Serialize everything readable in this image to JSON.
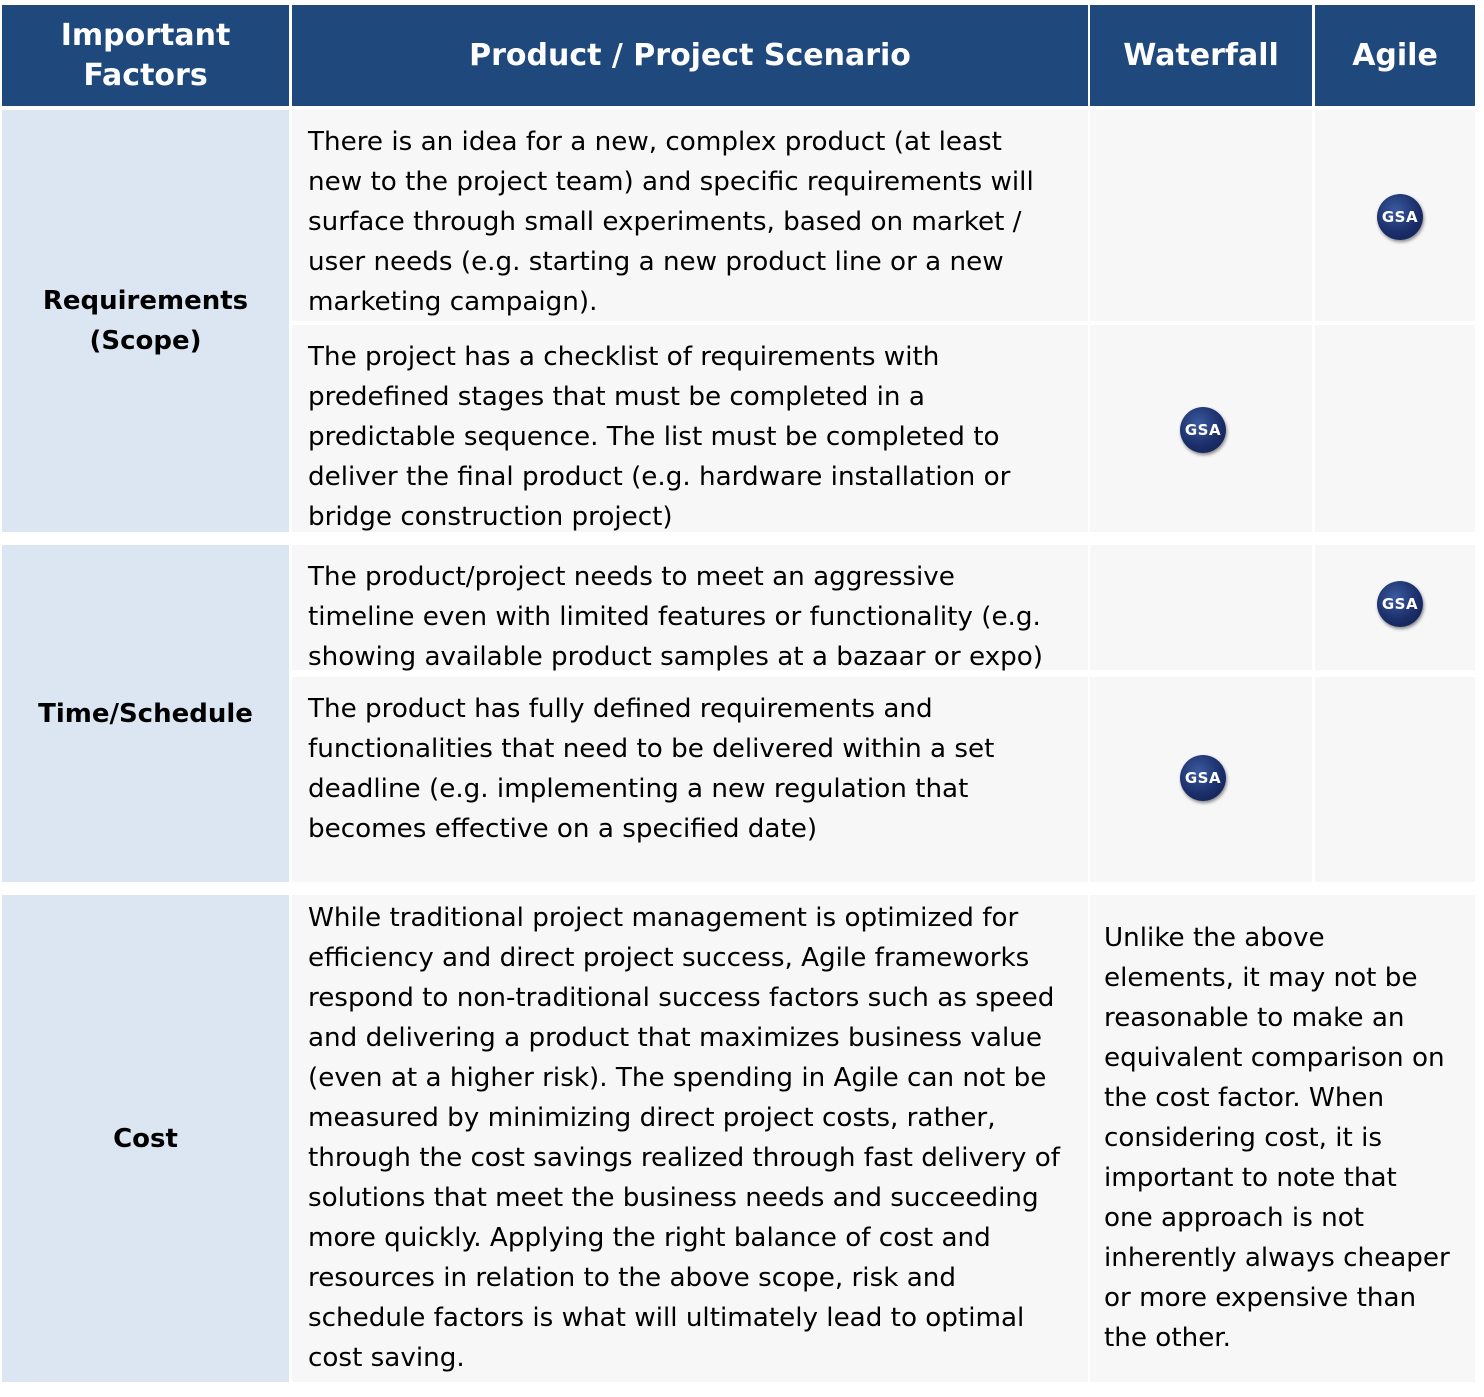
{
  "header": {
    "factors": "Important Factors",
    "scenario": "Product / Project Scenario",
    "waterfall": "Waterfall",
    "agile": "Agile"
  },
  "factors": {
    "requirements": "Requirements (Scope)",
    "time": "Time/Schedule",
    "cost": "Cost"
  },
  "scenarios": [
    {
      "lines": [
        "There is an idea for a new, complex product (at least",
        "new to the project team) and specific requirements will",
        "surface through small experiments, based on market /",
        "user needs (e.g. starting a new product line or a new",
        "marketing campaign)."
      ],
      "approach": "agile"
    },
    {
      "lines": [
        "The project has a checklist of requirements with",
        "predefined stages that must be completed in a",
        "predictable sequence. The list must be completed to",
        "deliver the final product (e.g. hardware installation or",
        "bridge construction project)"
      ],
      "approach": "waterfall"
    },
    {
      "lines": [
        "The product/project needs to meet an aggressive",
        "timeline even with limited features or functionality (e.g.",
        "showing available product samples at a bazaar or expo)"
      ],
      "approach": "agile"
    },
    {
      "lines": [
        "The product has fully defined requirements and",
        "functionalities that need to be delivered within a set",
        "deadline (e.g. implementing a new regulation that",
        "becomes effective on a specified date)"
      ],
      "approach": "waterfall"
    }
  ],
  "cost_scenario": {
    "lines": [
      "While traditional project management is optimized for",
      "efficiency and direct project success, Agile frameworks",
      "respond to non-traditional success factors such as speed",
      "and delivering a product that maximizes business value",
      "(even at a higher risk).  The spending in Agile can not be",
      "measured by minimizing direct project costs, rather,",
      "through the cost savings realized through fast delivery of",
      "solutions that meet the business needs and succeeding",
      "more quickly.  Applying the right balance of cost and",
      "resources in relation to the above scope, risk and",
      "schedule factors is what will ultimately lead to optimal",
      "cost saving."
    ]
  },
  "cost_note": {
    "lines": [
      "Unlike the above",
      "elements, it may not be",
      "reasonable to make an",
      "equivalent comparison on",
      "the cost factor.  When",
      "considering cost, it is",
      "important to note that",
      "one approach is not",
      "inherently always cheaper",
      "or more expensive than",
      "the other."
    ]
  },
  "badge": {
    "text": "GSA",
    "icon": "gsa-logo-icon"
  },
  "colors": {
    "header_bg": "#1f497d",
    "factor_bg": "#dce6f2",
    "body_bg": "#f7f7f8"
  }
}
